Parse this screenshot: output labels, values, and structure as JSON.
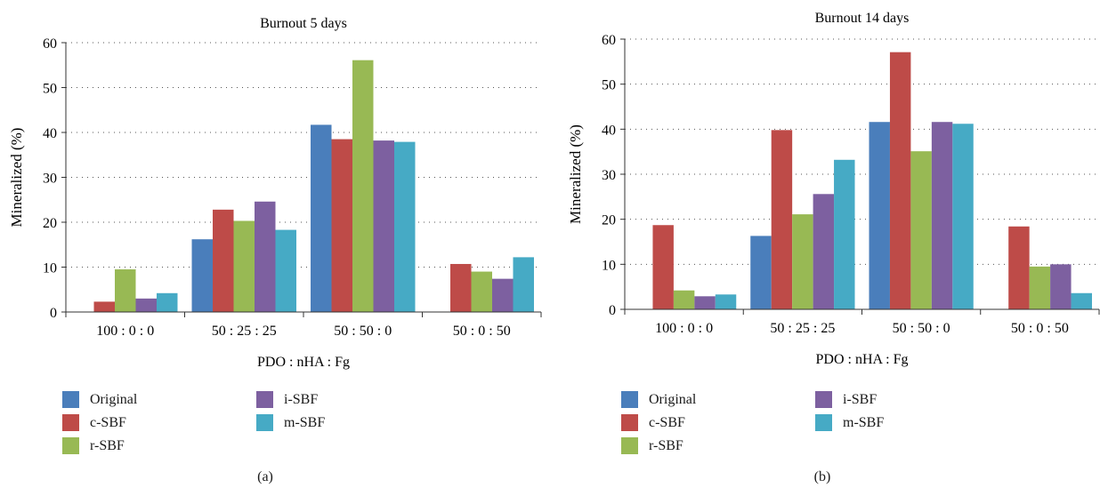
{
  "series_colors": {
    "Original": "#4a7ebb",
    "c-SBF": "#be4b48",
    "r-SBF": "#98b954",
    "i-SBF": "#7d60a0",
    "m-SBF": "#46aac5"
  },
  "chart_data": [
    {
      "type": "bar",
      "title": "Burnout 5 days",
      "xlabel": "PDO : nHA : Fg",
      "ylabel": "Mineralized (%)",
      "ylim": [
        0,
        60
      ],
      "yticks": [
        "0",
        "10",
        "20",
        "30",
        "40",
        "50",
        "60"
      ],
      "grid": "dotted horizontal",
      "legend_position": "bottom",
      "panel_label": "(a)",
      "categories": [
        "100 : 0 : 0",
        "50 : 25 : 25",
        "50 : 50 : 0",
        "50 : 0 : 50"
      ],
      "series": [
        {
          "name": "Original",
          "values": [
            0,
            16.2,
            41.7,
            0
          ]
        },
        {
          "name": "c-SBF",
          "values": [
            2.3,
            22.8,
            38.5,
            10.7
          ]
        },
        {
          "name": "r-SBF",
          "values": [
            9.5,
            20.3,
            56.1,
            9.0
          ]
        },
        {
          "name": "i-SBF",
          "values": [
            3.0,
            24.6,
            38.2,
            7.4
          ]
        },
        {
          "name": "m-SBF",
          "values": [
            4.2,
            18.3,
            37.9,
            12.2
          ]
        }
      ]
    },
    {
      "type": "bar",
      "title": "Burnout 14 days",
      "xlabel": "PDO : nHA : Fg",
      "ylabel": "Mineralized (%)",
      "ylim": [
        0,
        60
      ],
      "yticks": [
        "0",
        "10",
        "20",
        "30",
        "40",
        "50",
        "60"
      ],
      "grid": "dotted horizontal",
      "legend_position": "bottom",
      "panel_label": "(b)",
      "categories": [
        "100 : 0 : 0",
        "50 : 25 : 25",
        "50 : 50 : 0",
        "50 : 0 : 50"
      ],
      "series": [
        {
          "name": "Original",
          "values": [
            0,
            16.3,
            41.6,
            0
          ]
        },
        {
          "name": "c-SBF",
          "values": [
            18.7,
            39.8,
            57.1,
            18.4
          ]
        },
        {
          "name": "r-SBF",
          "values": [
            4.2,
            21.1,
            35.1,
            9.5
          ]
        },
        {
          "name": "i-SBF",
          "values": [
            2.9,
            25.6,
            41.6,
            10.0
          ]
        },
        {
          "name": "m-SBF",
          "values": [
            3.3,
            33.2,
            41.2,
            3.6
          ]
        }
      ]
    }
  ]
}
